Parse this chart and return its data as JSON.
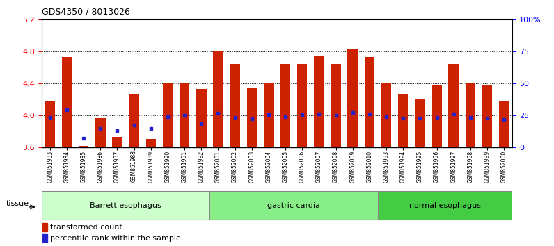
{
  "title": "GDS4350 / 8013026",
  "samples": [
    "GSM851983",
    "GSM851984",
    "GSM851985",
    "GSM851986",
    "GSM851987",
    "GSM851988",
    "GSM851989",
    "GSM851990",
    "GSM851991",
    "GSM851992",
    "GSM852001",
    "GSM852002",
    "GSM852003",
    "GSM852004",
    "GSM852005",
    "GSM852006",
    "GSM852007",
    "GSM852008",
    "GSM852009",
    "GSM852010",
    "GSM851993",
    "GSM851994",
    "GSM851995",
    "GSM851996",
    "GSM851997",
    "GSM851998",
    "GSM851999",
    "GSM852000"
  ],
  "bar_heights": [
    4.18,
    4.73,
    3.62,
    3.97,
    3.73,
    4.27,
    3.71,
    4.4,
    4.41,
    4.33,
    4.8,
    4.65,
    4.35,
    4.41,
    4.65,
    4.65,
    4.75,
    4.65,
    4.83,
    4.73,
    4.4,
    4.27,
    4.2,
    4.38,
    4.65,
    4.4,
    4.38,
    4.18
  ],
  "percentile_values": [
    3.98,
    4.07,
    3.72,
    3.84,
    3.81,
    3.88,
    3.84,
    3.99,
    4.0,
    3.9,
    4.03,
    3.98,
    3.96,
    4.01,
    3.99,
    4.01,
    4.02,
    4.0,
    4.04,
    4.02,
    3.99,
    3.97,
    3.97,
    3.98,
    4.02,
    3.98,
    3.97,
    3.95
  ],
  "groups": [
    {
      "label": "Barrett esophagus",
      "start": 0,
      "end": 10,
      "color": "#ccffcc"
    },
    {
      "label": "gastric cardia",
      "start": 10,
      "end": 20,
      "color": "#88ee88"
    },
    {
      "label": "normal esophagus",
      "start": 20,
      "end": 28,
      "color": "#44cc44"
    }
  ],
  "bar_color": "#cc2200",
  "marker_color": "#2222cc",
  "ylim_left": [
    3.6,
    5.2
  ],
  "ylim_right": [
    0,
    100
  ],
  "yticks_left": [
    3.6,
    4.0,
    4.4,
    4.8,
    5.2
  ],
  "yticks_right": [
    0,
    25,
    50,
    75,
    100
  ],
  "ytick_labels_right": [
    "0",
    "25",
    "50",
    "75",
    "100%"
  ],
  "hlines": [
    4.0,
    4.4,
    4.8
  ],
  "base": 3.6,
  "tissue_label": "tissue"
}
